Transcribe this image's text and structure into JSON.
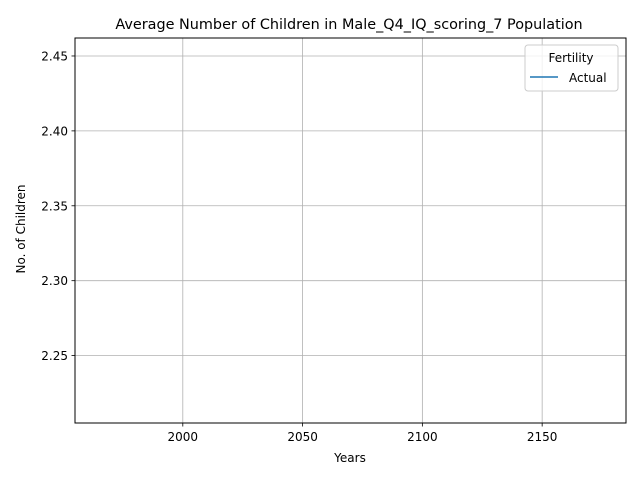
{
  "chart_data": {
    "type": "line",
    "title": "Average Number of Children in Male_Q4_IQ_scoring_7 Population",
    "xlabel": "Years",
    "ylabel": "No. of Children",
    "xlim": [
      1955,
      2185
    ],
    "ylim": [
      2.205,
      2.462
    ],
    "xticks": [
      2000,
      2050,
      2100,
      2150
    ],
    "xtick_labels": [
      "2000",
      "2050",
      "2100",
      "2150"
    ],
    "yticks": [
      2.25,
      2.3,
      2.35,
      2.4,
      2.45
    ],
    "ytick_labels": [
      "2.25",
      "2.30",
      "2.35",
      "2.40",
      "2.45"
    ],
    "grid": true,
    "legend": {
      "title": "Fertility",
      "placement": "top-right"
    },
    "series": [
      {
        "name": "Actual",
        "color": "#1f77b4",
        "x": [],
        "values": []
      }
    ]
  }
}
